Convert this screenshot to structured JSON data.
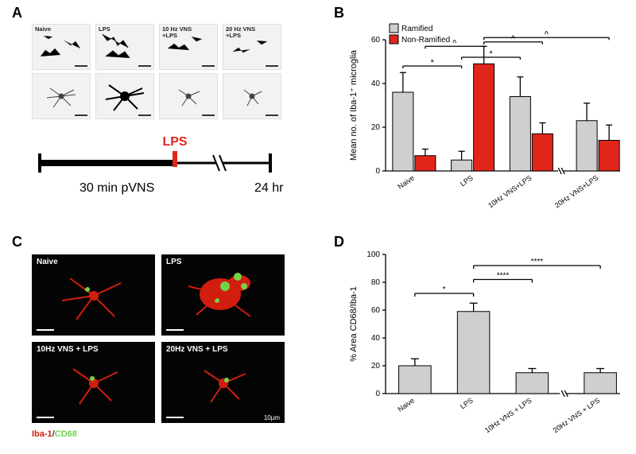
{
  "labels": {
    "A": "A",
    "B": "B",
    "C": "C",
    "D": "D"
  },
  "panelA": {
    "conditions": [
      "Naive",
      "LPS",
      "10 Hz VNS\n+LPS",
      "20 Hz VNS\n+LPS"
    ],
    "timeline": {
      "pre_label": "30 min pVNS",
      "end_label": "24 hr",
      "marker": "LPS",
      "marker_color": "#e1251b"
    }
  },
  "panelB": {
    "type": "grouped_bar",
    "title": "",
    "ylabel": "Mean no. of Iba-1⁺ microglia",
    "ylim": [
      0,
      60
    ],
    "ytick_step": 20,
    "categories": [
      "Naive",
      "LPS",
      "10Hz VNS+LPS",
      "20Hz VNS+LPS"
    ],
    "series": [
      {
        "name": "Ramified",
        "color": "#cfcfcf",
        "values": [
          36,
          5,
          34,
          23
        ],
        "err": [
          9,
          4,
          9,
          8
        ]
      },
      {
        "name": "Non-Ramified",
        "color": "#e1251b",
        "values": [
          7,
          49,
          17,
          14
        ],
        "err": [
          3,
          8,
          5,
          7
        ]
      }
    ],
    "sig": [
      {
        "from": [
          0,
          0
        ],
        "to": [
          1,
          0
        ],
        "label": "*",
        "y": 48
      },
      {
        "from": [
          1,
          0
        ],
        "to": [
          2,
          0
        ],
        "label": "*",
        "y": 52
      },
      {
        "from": [
          0,
          1
        ],
        "to": [
          1,
          1
        ],
        "label": "^",
        "y": 57
      },
      {
        "from": [
          1,
          1
        ],
        "to": [
          2,
          1
        ],
        "label": "^",
        "y": 59
      },
      {
        "from": [
          1,
          1
        ],
        "to": [
          3,
          1
        ],
        "label": "^",
        "y": 61
      }
    ],
    "bar_width": 0.38,
    "axis_color": "#000000",
    "label_fontsize": 11
  },
  "panelC": {
    "conditions": [
      "Naive",
      "LPS",
      "10Hz VNS + LPS",
      "20Hz VNS + LPS"
    ],
    "stain_label_red": "Iba-1",
    "stain_label_green": "CD68",
    "colors": {
      "red": "#d11e0f",
      "green": "#73d24a"
    },
    "scalebar": "10µm"
  },
  "panelD": {
    "type": "bar",
    "ylabel": "% Area CD68/Iba-1",
    "ylim": [
      0,
      100
    ],
    "ytick_step": 20,
    "categories": [
      "Naive",
      "LPS",
      "10Hz VNS + LPS",
      "20Hz VNS + LPS"
    ],
    "values": [
      20,
      59,
      15,
      15
    ],
    "err": [
      5,
      6,
      3,
      3
    ],
    "bar_color": "#cfcfcf",
    "bar_width": 0.55,
    "sig": [
      {
        "from": 0,
        "to": 1,
        "label": "*",
        "y": 72
      },
      {
        "from": 1,
        "to": 2,
        "label": "****",
        "y": 82
      },
      {
        "from": 1,
        "to": 3,
        "label": "****",
        "y": 92
      }
    ],
    "axis_color": "#000000",
    "label_fontsize": 11,
    "break_after_index": 2
  }
}
